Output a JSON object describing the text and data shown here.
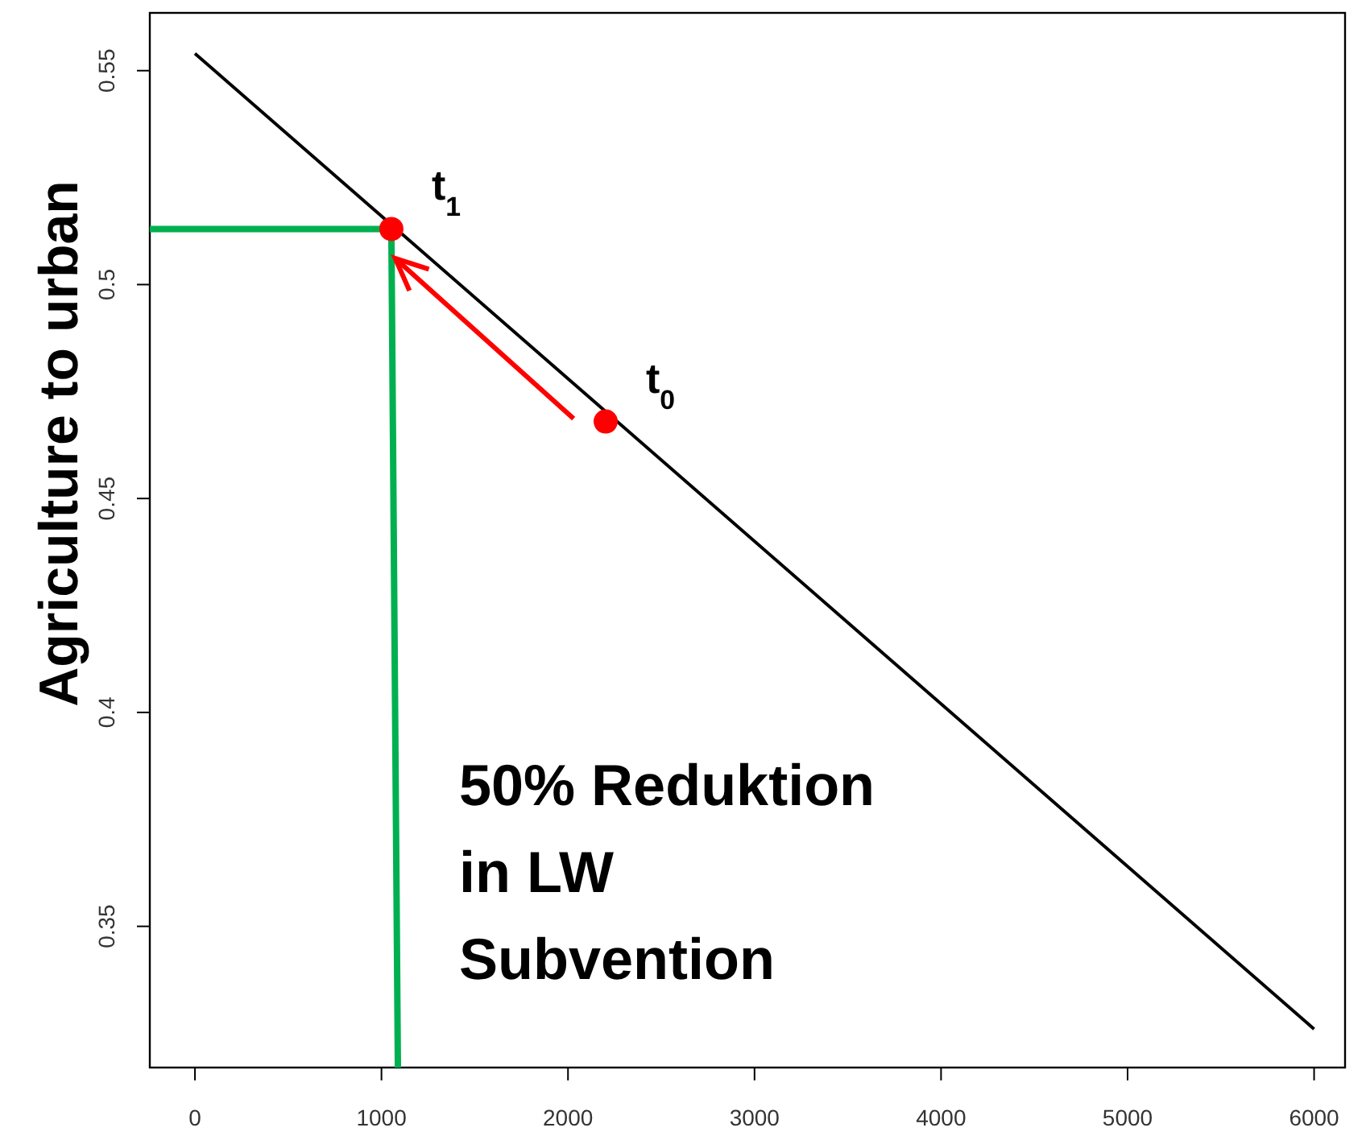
{
  "chart_data": {
    "type": "line",
    "ylabel": "Agriculture to urban",
    "xlim": [
      -242,
      6166
    ],
    "ylim": [
      0.317,
      0.5635
    ],
    "xticks": [
      0,
      1000,
      2000,
      3000,
      4000,
      5000,
      6000
    ],
    "yticks": [
      0.35,
      0.4,
      0.45,
      0.5,
      0.55
    ],
    "series": [
      {
        "color": "#000000",
        "x": [
          0,
          6000
        ],
        "values": [
          0.554,
          0.326
        ]
      },
      {
        "color": "#00b050",
        "x": [
          -242,
          1053,
          1088
        ],
        "values": [
          0.513,
          0.513,
          0.317
        ]
      },
      {
        "type": "scatter",
        "marker": "circle",
        "color": "#ff0000",
        "x": [
          1053,
          2202
        ],
        "values": [
          0.513,
          0.468
        ]
      }
    ],
    "annotations": [
      {
        "text": "t$_{1}$",
        "x": 1053,
        "y": 0.513
      },
      {
        "text": "t$_{0}$",
        "x": 2202,
        "y": 0.468
      },
      "50% Reduktion\nin LW\nSubvention"
    ],
    "grid": false
  }
}
